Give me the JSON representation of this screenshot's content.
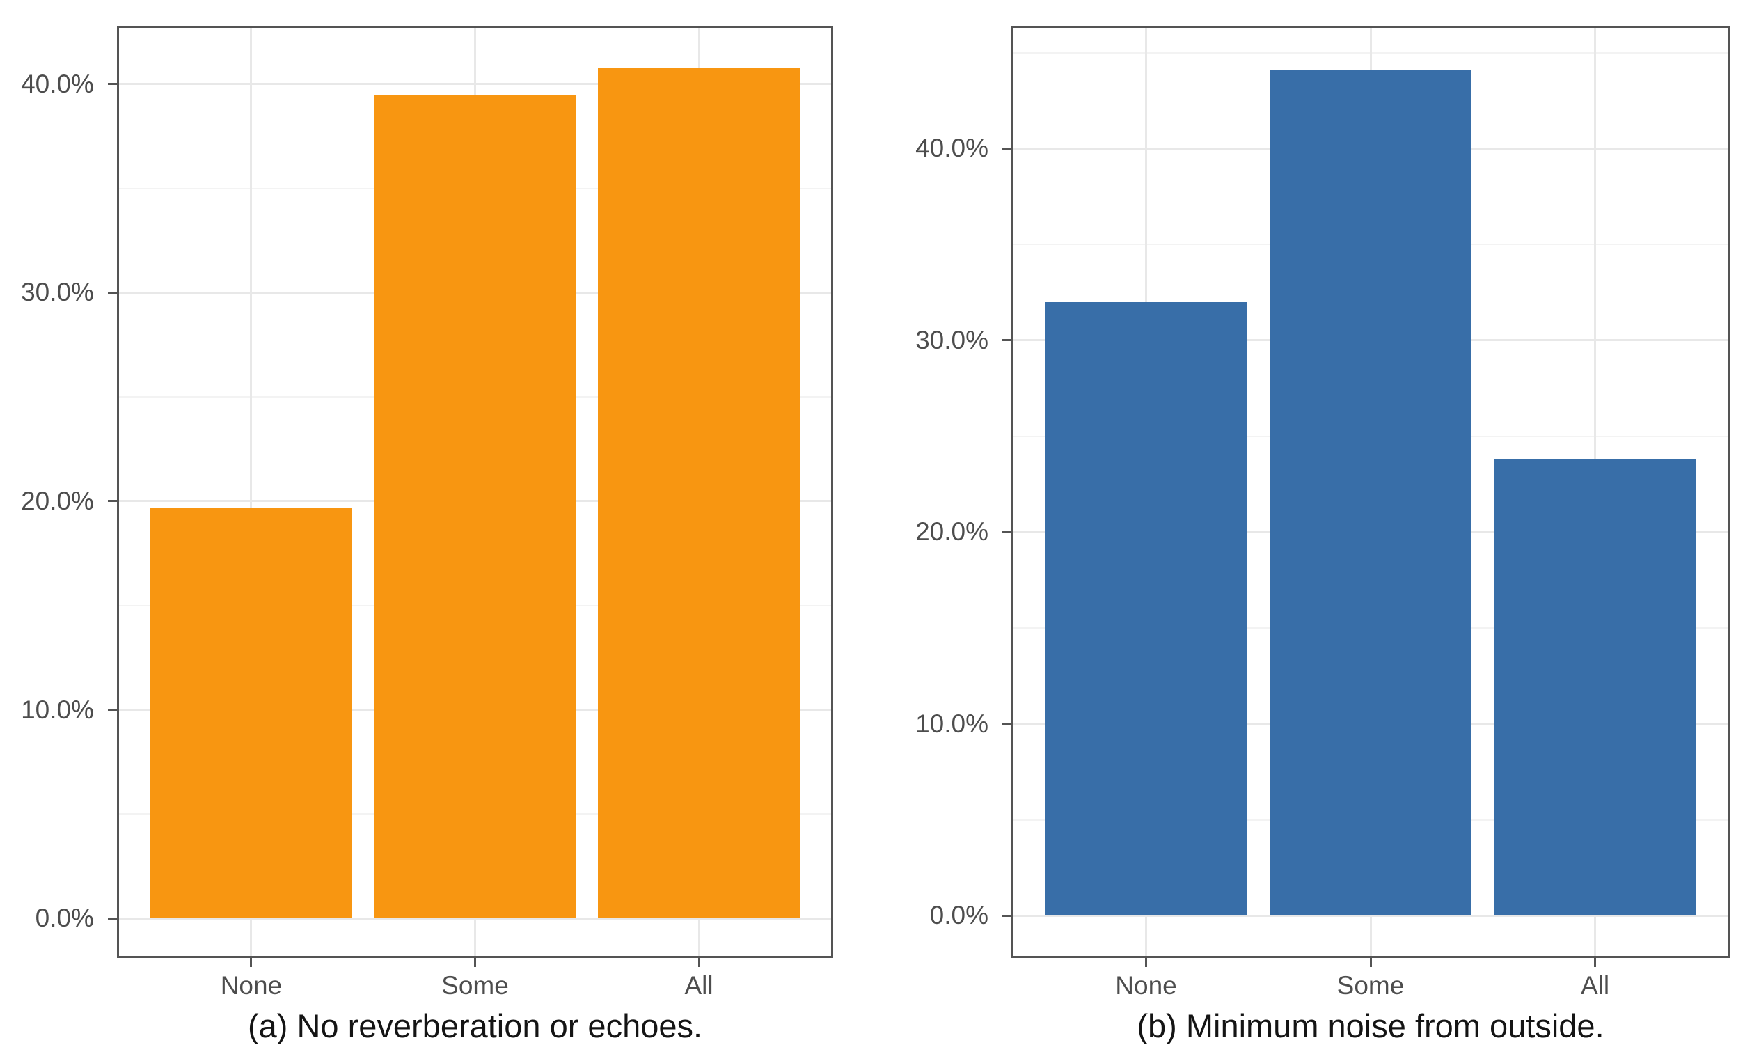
{
  "figure": {
    "background": "#FFFFFF",
    "title": ""
  },
  "styles": {
    "panel_border": "#545454",
    "tick_color": "#545454",
    "grid_major": "#E8E8E8",
    "grid_minor": "#F3F3F3",
    "axis_text_color": "#4D4D4D",
    "caption_color": "#141414",
    "bar_orange": "#F89611",
    "bar_blue": "#386EA8"
  },
  "chart_data": {
    "type": "bar",
    "title": "",
    "xlabel": "",
    "ylabel": "",
    "grid": "major+minor",
    "legend": "none",
    "panels": [
      {
        "id": "a",
        "caption": "(a) No reverberation or echoes.",
        "categories": [
          "None",
          "Some",
          "All"
        ],
        "values": [
          19.7,
          39.5,
          40.8
        ],
        "unit": "%",
        "bar_color": "#F89611",
        "ylim": [
          -1.9,
          42.8
        ],
        "y_major_ticks": [
          0,
          10,
          20,
          30,
          40
        ],
        "y_minor_ticks": [
          5,
          15,
          25,
          35,
          45
        ],
        "y_tick_labels": [
          "0.0%",
          "10.0%",
          "20.0%",
          "30.0%",
          "40.0%"
        ]
      },
      {
        "id": "b",
        "caption": "(b) Minimum noise from outside.",
        "categories": [
          "None",
          "Some",
          "All"
        ],
        "values": [
          32.0,
          44.1,
          23.8
        ],
        "unit": "%",
        "bar_color": "#386EA8",
        "ylim": [
          -2.2,
          46.4
        ],
        "y_major_ticks": [
          0,
          10,
          20,
          30,
          40
        ],
        "y_minor_ticks": [
          5,
          15,
          25,
          35,
          45
        ],
        "y_tick_labels": [
          "0.0%",
          "10.0%",
          "20.0%",
          "30.0%",
          "40.0%"
        ]
      }
    ]
  }
}
